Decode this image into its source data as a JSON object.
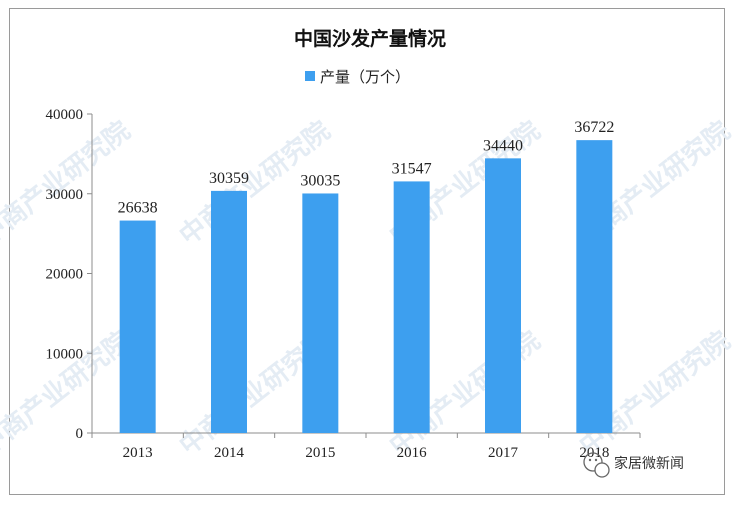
{
  "watermark": "中商产业研究院",
  "brand": {
    "text": "家居微新闻",
    "icon": "wechat-icon"
  },
  "chart_data": {
    "type": "bar",
    "title": "中国沙发产量情况",
    "categories": [
      "2013",
      "2014",
      "2015",
      "2016",
      "2017",
      "2018"
    ],
    "series": [
      {
        "name": "产量（万个）",
        "values": [
          26638,
          30359,
          30035,
          31547,
          34440,
          36722
        ],
        "color": "#3d9fef"
      }
    ],
    "y_ticks": [
      "0",
      "10000",
      "20000",
      "30000",
      "40000"
    ],
    "ylim": [
      0,
      40000
    ],
    "grid": false,
    "legend_position": "top-center",
    "data_labels": true
  }
}
